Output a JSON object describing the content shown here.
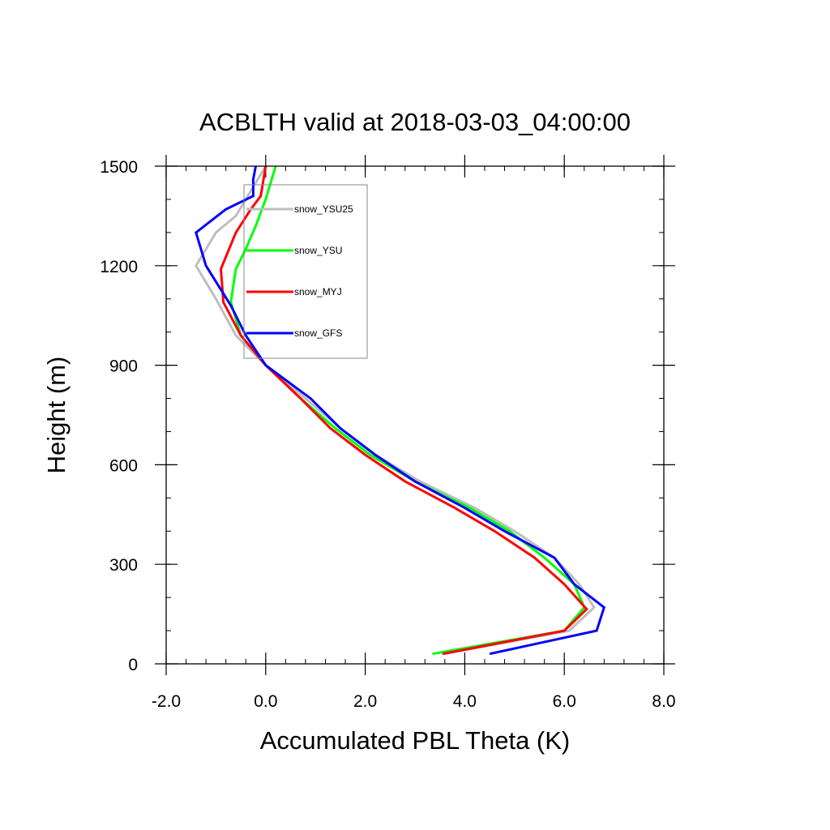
{
  "chart_data": {
    "type": "line",
    "title": "ACBLTH valid at 2018-03-03_04:00:00",
    "xlabel": "Accumulated PBL Theta (K)",
    "ylabel": "Height (m)",
    "xlim": [
      -2.0,
      8.0
    ],
    "ylim": [
      0,
      1500
    ],
    "x_ticks": [
      {
        "value": -2.0,
        "label": "-2.0"
      },
      {
        "value": 0.0,
        "label": "0.0"
      },
      {
        "value": 2.0,
        "label": "2.0"
      },
      {
        "value": 4.0,
        "label": "4.0"
      },
      {
        "value": 6.0,
        "label": "6.0"
      },
      {
        "value": 8.0,
        "label": "8.0"
      }
    ],
    "y_ticks": [
      {
        "value": 0,
        "label": "0"
      },
      {
        "value": 300,
        "label": "300"
      },
      {
        "value": 600,
        "label": "600"
      },
      {
        "value": 900,
        "label": "900"
      },
      {
        "value": 1200,
        "label": "1200"
      },
      {
        "value": 1500,
        "label": "1500"
      }
    ],
    "x_minor_step": 0.4,
    "y_minor_step": 100,
    "grid": false,
    "legend_position": "top-left inside plot",
    "series": [
      {
        "name": "snow_YSU25",
        "color": "#bebebe",
        "x": [
          3.6,
          6.1,
          6.6,
          6.3,
          5.8,
          5.0,
          4.2,
          3.1,
          2.2,
          1.5,
          0.8,
          0.0,
          -0.6,
          -1.0,
          -1.4,
          -1.0,
          -0.6,
          -0.4,
          -0.2,
          0.0
        ],
        "y": [
          30,
          100,
          170,
          240,
          320,
          400,
          470,
          550,
          630,
          710,
          800,
          900,
          990,
          1100,
          1200,
          1300,
          1350,
          1400,
          1450,
          1500
        ]
      },
      {
        "name": "snow_YSU",
        "color": "#00ff00",
        "x": [
          3.35,
          6.0,
          6.4,
          6.2,
          5.6,
          4.9,
          4.1,
          3.0,
          2.1,
          1.4,
          0.7,
          0.0,
          -0.5,
          -0.7,
          -0.6,
          -0.4,
          -0.2,
          0.0,
          0.1,
          0.2
        ],
        "y": [
          30,
          100,
          170,
          240,
          320,
          400,
          470,
          550,
          630,
          710,
          800,
          900,
          990,
          1090,
          1190,
          1250,
          1320,
          1400,
          1450,
          1500
        ]
      },
      {
        "name": "snow_MYJ",
        "color": "#ff0000",
        "x": [
          3.55,
          6.0,
          6.45,
          6.0,
          5.4,
          4.6,
          3.8,
          2.8,
          2.0,
          1.3,
          0.7,
          0.0,
          -0.5,
          -0.85,
          -0.9,
          -0.6,
          -0.3,
          -0.1,
          0.0
        ],
        "y": [
          30,
          100,
          165,
          240,
          320,
          400,
          470,
          550,
          630,
          710,
          800,
          900,
          990,
          1090,
          1190,
          1300,
          1370,
          1410,
          1500
        ]
      },
      {
        "name": "snow_GFS",
        "color": "#0000ff",
        "x": [
          4.5,
          6.65,
          6.8,
          6.2,
          5.8,
          4.8,
          4.0,
          3.0,
          2.2,
          1.5,
          0.9,
          0.0,
          -0.4,
          -0.7,
          -1.2,
          -1.4,
          -0.8,
          -0.25,
          -0.25,
          -0.2
        ],
        "y": [
          30,
          100,
          170,
          240,
          320,
          400,
          470,
          550,
          630,
          710,
          800,
          900,
          990,
          1080,
          1200,
          1300,
          1370,
          1410,
          1460,
          1500
        ]
      }
    ]
  }
}
